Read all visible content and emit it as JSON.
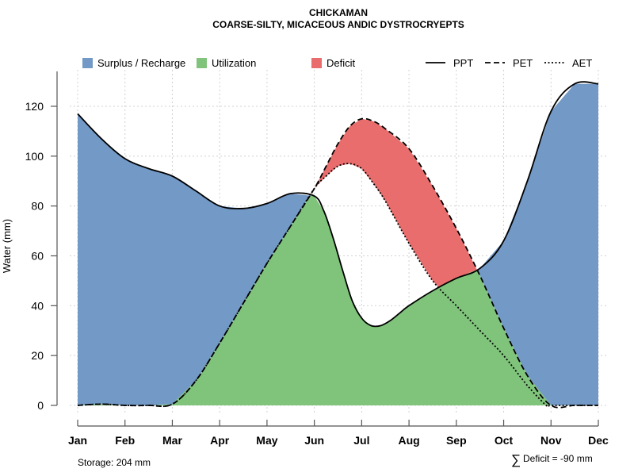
{
  "chart_data": {
    "type": "area",
    "title": "CHICKAMAN",
    "subtitle": "COARSE-SILTY, MICACEOUS ANDIC DYSTROCRYEPTS",
    "xlabel": "",
    "ylabel": "Water (mm)",
    "categories": [
      "Jan",
      "Feb",
      "Mar",
      "Apr",
      "May",
      "Jun",
      "Jul",
      "Aug",
      "Sep",
      "Oct",
      "Nov",
      "Dec"
    ],
    "ylim": [
      0,
      130
    ],
    "yticks": [
      0,
      20,
      40,
      60,
      80,
      100,
      120
    ],
    "grid": true,
    "series": [
      {
        "name": "PPT",
        "style": "solid",
        "x": [
          0,
          0.5,
          1,
          1.5,
          2,
          2.5,
          3,
          3.5,
          4,
          4.5,
          5,
          5.2,
          5.4,
          5.6,
          5.8,
          6,
          6.2,
          6.4,
          6.6,
          6.8,
          7,
          7.5,
          8,
          8.5,
          9,
          9.5,
          10,
          10.5,
          11
        ],
        "values": [
          117,
          107,
          99,
          95,
          92,
          86,
          80,
          79,
          81,
          85,
          84,
          78,
          67,
          54,
          42,
          35,
          32,
          32,
          34,
          37,
          40,
          46,
          51,
          55,
          66,
          90,
          118,
          129,
          129
        ]
      },
      {
        "name": "PET",
        "style": "dashed",
        "x": [
          0,
          0.5,
          1,
          1.5,
          2,
          2.5,
          3,
          3.5,
          4,
          4.5,
          5,
          5.25,
          5.5,
          5.75,
          6,
          6.25,
          6.5,
          7,
          7.5,
          8,
          8.5,
          9,
          9.5,
          10,
          10.5,
          11
        ],
        "values": [
          0,
          0.5,
          0,
          0,
          0.5,
          10,
          25,
          41,
          57,
          72,
          87,
          96,
          105,
          112,
          115,
          114,
          111,
          103,
          88,
          71,
          52,
          31,
          12,
          0,
          0,
          0
        ]
      },
      {
        "name": "AET",
        "style": "dotted",
        "x": [
          0,
          0.5,
          1,
          1.5,
          2,
          2.5,
          3,
          3.5,
          4,
          4.5,
          5,
          5.25,
          5.5,
          5.75,
          6,
          6.25,
          6.5,
          7,
          7.5,
          8,
          8.5,
          9,
          9.5,
          9.9,
          10,
          10.5,
          11
        ],
        "values": [
          0,
          0.5,
          0,
          0,
          0.5,
          10,
          25,
          41,
          57,
          72,
          87,
          92,
          96,
          97,
          95,
          89,
          82,
          65,
          50,
          40,
          30,
          20,
          8,
          0,
          0,
          0,
          0
        ]
      }
    ],
    "areas": [
      {
        "name": "Surplus / Recharge",
        "color": "#7399c6"
      },
      {
        "name": "Utilization",
        "color": "#80c47c"
      },
      {
        "name": "Deficit",
        "color": "#ea6d6d"
      }
    ],
    "legend": {
      "position": "top",
      "areas": [
        "Surplus / Recharge",
        "Utilization",
        "Deficit"
      ],
      "lines": [
        "PPT",
        "PET",
        "AET"
      ]
    },
    "annotations": {
      "storage": "Storage: 204 mm",
      "deficit_symbol": "∑",
      "deficit": "Deficit = -90 mm"
    }
  }
}
